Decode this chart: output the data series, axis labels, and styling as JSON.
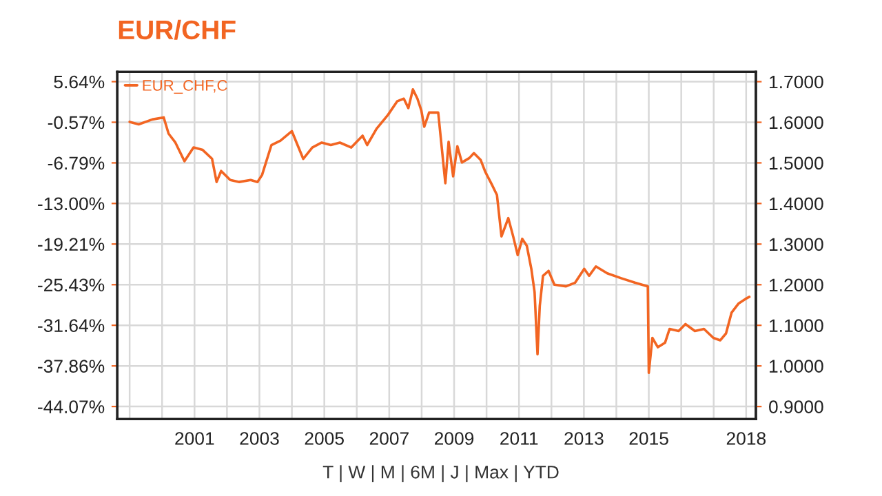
{
  "chart_data": {
    "type": "line",
    "title": "EUR/CHF",
    "xlim": [
      1998.62,
      2018.3
    ],
    "xticks": [
      {
        "value": 1999,
        "label": null
      },
      {
        "value": 2000,
        "label": null
      },
      2001,
      {
        "value": 2002,
        "label": null
      },
      2003,
      {
        "value": 2004,
        "label": null
      },
      2005,
      {
        "value": 2006,
        "label": null
      },
      2007,
      {
        "value": 2008,
        "label": null
      },
      2009,
      {
        "value": 2010,
        "label": null
      },
      2011,
      {
        "value": 2012,
        "label": null
      },
      2013,
      {
        "value": 2014,
        "label": null
      },
      2015,
      {
        "value": 2016,
        "label": null
      },
      {
        "value": 2017,
        "label": null
      },
      2018
    ],
    "ylim": [
      -46.0,
      7.13
    ],
    "yticks": [
      {
        "value": 5.64,
        "label": "5.64%"
      },
      {
        "value": -0.57,
        "label": "-0.57%"
      },
      {
        "value": -6.79,
        "label": "-6.79%"
      },
      {
        "value": -13.0,
        "label": "-13.00%"
      },
      {
        "value": -19.21,
        "label": "-19.21%"
      },
      {
        "value": -25.43,
        "label": "-25.43%"
      },
      {
        "value": -31.64,
        "label": "-31.64%"
      },
      {
        "value": -37.86,
        "label": "-37.86%"
      },
      {
        "value": -44.07,
        "label": "-44.07%"
      }
    ],
    "y2lim": [
      0.869,
      1.724
    ],
    "y2ticks": [
      {
        "value": 1.7,
        "label": "1.7000"
      },
      {
        "value": 1.6,
        "label": "1.6000"
      },
      {
        "value": 1.5,
        "label": "1.5000"
      },
      {
        "value": 1.4,
        "label": "1.4000"
      },
      {
        "value": 1.3,
        "label": "1.3000"
      },
      {
        "value": 1.2,
        "label": "1.2000"
      },
      {
        "value": 1.1,
        "label": "1.1000"
      },
      {
        "value": 1.0,
        "label": "1.0000"
      },
      {
        "value": 0.9,
        "label": "0.9000"
      }
    ],
    "grid": true,
    "legend": "top left",
    "line_style": "solid",
    "annotations": [
      "T | W | M | 6M | J | Max | YTD"
    ],
    "series": [
      {
        "name": "EUR_CHF,C",
        "color": "#f26522",
        "axis": "y2",
        "x": [
          1999.0,
          1999.28,
          1999.7,
          2000.05,
          2000.2,
          2000.41,
          2000.69,
          2000.97,
          2001.25,
          2001.54,
          2001.68,
          2001.82,
          2002.1,
          2002.38,
          2002.73,
          2002.94,
          2003.08,
          2003.37,
          2003.65,
          2004.0,
          2004.35,
          2004.63,
          2004.92,
          2005.2,
          2005.48,
          2005.83,
          2006.18,
          2006.32,
          2006.61,
          2006.96,
          2007.25,
          2007.45,
          2007.59,
          2007.73,
          2007.87,
          2007.99,
          2008.08,
          2008.23,
          2008.51,
          2008.73,
          2008.83,
          2008.97,
          2009.1,
          2009.24,
          2009.47,
          2009.61,
          2009.82,
          2009.96,
          2010.18,
          2010.32,
          2010.46,
          2010.67,
          2010.82,
          2010.96,
          2011.1,
          2011.24,
          2011.38,
          2011.48,
          2011.57,
          2011.64,
          2011.74,
          2011.91,
          2012.09,
          2012.45,
          2012.73,
          2013.01,
          2013.16,
          2013.37,
          2013.72,
          2014.15,
          2014.57,
          2014.97,
          2015.0,
          2015.11,
          2015.28,
          2015.5,
          2015.64,
          2015.92,
          2016.13,
          2016.42,
          2016.7,
          2016.99,
          2017.2,
          2017.38,
          2017.55,
          2017.77,
          2017.98,
          2018.1
        ],
        "values": [
          1.601,
          1.595,
          1.607,
          1.612,
          1.572,
          1.55,
          1.504,
          1.538,
          1.532,
          1.51,
          1.453,
          1.48,
          1.458,
          1.453,
          1.458,
          1.453,
          1.47,
          1.544,
          1.555,
          1.578,
          1.51,
          1.538,
          1.55,
          1.544,
          1.55,
          1.538,
          1.567,
          1.544,
          1.584,
          1.618,
          1.652,
          1.658,
          1.635,
          1.681,
          1.658,
          1.629,
          1.589,
          1.624,
          1.624,
          1.45,
          1.552,
          1.467,
          1.541,
          1.501,
          1.512,
          1.524,
          1.507,
          1.478,
          1.444,
          1.421,
          1.319,
          1.364,
          1.319,
          1.273,
          1.313,
          1.296,
          1.239,
          1.182,
          1.029,
          1.148,
          1.222,
          1.234,
          1.2,
          1.196,
          1.205,
          1.239,
          1.222,
          1.245,
          1.228,
          1.216,
          1.205,
          1.196,
          0.983,
          1.069,
          1.046,
          1.057,
          1.091,
          1.086,
          1.103,
          1.086,
          1.091,
          1.069,
          1.063,
          1.08,
          1.131,
          1.154,
          1.165,
          1.17
        ]
      }
    ]
  }
}
